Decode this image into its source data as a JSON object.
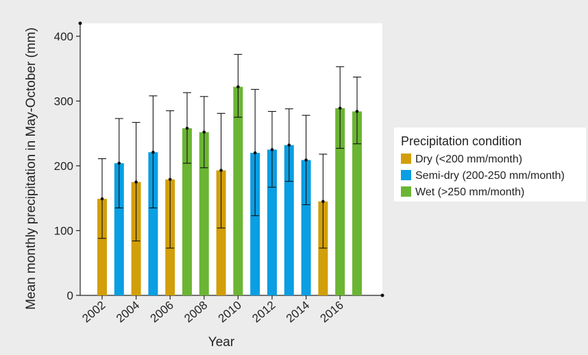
{
  "colors": {
    "dry": "#d29f0a",
    "semi_dry": "#0a9ee2",
    "wet": "#6bb534"
  },
  "chart_data": {
    "type": "bar",
    "title": "",
    "xlabel": "Year",
    "ylabel": "Mean monthly precipitation in May-October (mm)",
    "ylim": [
      0,
      420
    ],
    "yticks": [
      0,
      100,
      200,
      300,
      400
    ],
    "xtick_labels": [
      "2002",
      "2004",
      "2006",
      "2008",
      "2010",
      "2012",
      "2014",
      "2016"
    ],
    "grid": false,
    "legend_position": "right",
    "legend": {
      "title": "Precipitation condition",
      "entries": [
        {
          "key": "dry",
          "label": "Dry (<200 mm/month)"
        },
        {
          "key": "semi_dry",
          "label": "Semi-dry (200-250 mm/month)"
        },
        {
          "key": "wet",
          "label": "Wet (>250 mm/month)"
        }
      ]
    },
    "bars": [
      {
        "year": 2002,
        "value": 149,
        "err_low": 88,
        "err_high": 211,
        "condition": "dry"
      },
      {
        "year": 2003,
        "value": 204,
        "err_low": 135,
        "err_high": 273,
        "condition": "semi_dry"
      },
      {
        "year": 2004,
        "value": 175,
        "err_low": 84,
        "err_high": 267,
        "condition": "dry"
      },
      {
        "year": 2005,
        "value": 221,
        "err_low": 135,
        "err_high": 308,
        "condition": "semi_dry"
      },
      {
        "year": 2006,
        "value": 179,
        "err_low": 73,
        "err_high": 285,
        "condition": "dry"
      },
      {
        "year": 2007,
        "value": 258,
        "err_low": 204,
        "err_high": 313,
        "condition": "wet"
      },
      {
        "year": 2008,
        "value": 252,
        "err_low": 197,
        "err_high": 307,
        "condition": "wet"
      },
      {
        "year": 2009,
        "value": 193,
        "err_low": 104,
        "err_high": 281,
        "condition": "dry"
      },
      {
        "year": 2010,
        "value": 322,
        "err_low": 275,
        "err_high": 372,
        "condition": "wet"
      },
      {
        "year": 2011,
        "value": 220,
        "err_low": 123,
        "err_high": 318,
        "condition": "semi_dry"
      },
      {
        "year": 2012,
        "value": 225,
        "err_low": 167,
        "err_high": 284,
        "condition": "semi_dry"
      },
      {
        "year": 2013,
        "value": 232,
        "err_low": 176,
        "err_high": 288,
        "condition": "semi_dry"
      },
      {
        "year": 2014,
        "value": 209,
        "err_low": 140,
        "err_high": 278,
        "condition": "semi_dry"
      },
      {
        "year": 2015,
        "value": 145,
        "err_low": 73,
        "err_high": 218,
        "condition": "dry"
      },
      {
        "year": 2016,
        "value": 289,
        "err_low": 227,
        "err_high": 353,
        "condition": "wet"
      },
      {
        "year": 2017,
        "value": 284,
        "err_low": 234,
        "err_high": 337,
        "condition": "wet"
      }
    ]
  }
}
